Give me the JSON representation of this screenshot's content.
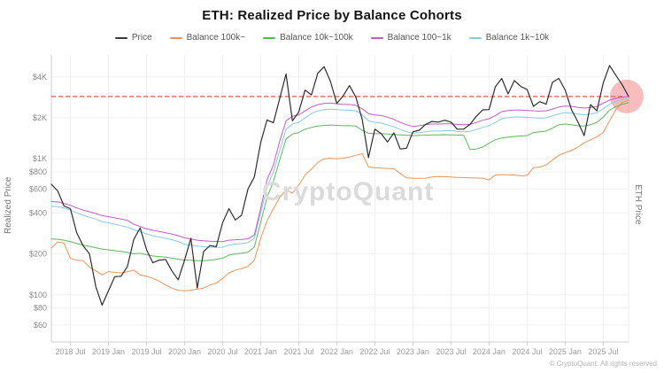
{
  "title": "ETH: Realized Price by Balance Cohorts",
  "legend": [
    {
      "label": "Price",
      "color": "#3a3a3a"
    },
    {
      "label": "Balance 100k~",
      "color": "#ec9456"
    },
    {
      "label": "Balance 10k~100k",
      "color": "#5cb85c"
    },
    {
      "label": "Balance 100~1k",
      "color": "#c45ac8"
    },
    {
      "label": "Balance 1k~10k",
      "color": "#85c9e8"
    }
  ],
  "y_axis": {
    "title": "Realized Price",
    "ticks": [
      {
        "value": 4000,
        "label": "$4K"
      },
      {
        "value": 2000,
        "label": "$2K"
      },
      {
        "value": 1000,
        "label": "$1K"
      },
      {
        "value": 800,
        "label": "$800"
      },
      {
        "value": 600,
        "label": "$600"
      },
      {
        "value": 400,
        "label": "$400"
      },
      {
        "value": 200,
        "label": "$200"
      },
      {
        "value": 100,
        "label": "$100"
      },
      {
        "value": 80,
        "label": "$80"
      },
      {
        "value": 60,
        "label": "$60"
      }
    ]
  },
  "right_axis_title": "ETH Price",
  "watermark": {
    "text": "CryptoQuant"
  },
  "footer": "© CryptoQuant. All rights reserved",
  "chart_data": {
    "type": "line",
    "yscale": "log",
    "ylim": [
      45,
      5800
    ],
    "grid": true,
    "legend_position": "top",
    "x": [
      "2018-04",
      "2018-05",
      "2018-06",
      "2018-07",
      "2018-08",
      "2018-09",
      "2018-10",
      "2018-11",
      "2018-12",
      "2019-01",
      "2019-02",
      "2019-03",
      "2019-04",
      "2019-05",
      "2019-06",
      "2019-07",
      "2019-08",
      "2019-09",
      "2019-10",
      "2019-11",
      "2019-12",
      "2020-01",
      "2020-02",
      "2020-03",
      "2020-04",
      "2020-05",
      "2020-06",
      "2020-07",
      "2020-08",
      "2020-09",
      "2020-10",
      "2020-11",
      "2020-12",
      "2021-01",
      "2021-02",
      "2021-03",
      "2021-04",
      "2021-05",
      "2021-06",
      "2021-07",
      "2021-08",
      "2021-09",
      "2021-10",
      "2021-11",
      "2021-12",
      "2022-01",
      "2022-02",
      "2022-03",
      "2022-04",
      "2022-05",
      "2022-06",
      "2022-07",
      "2022-08",
      "2022-09",
      "2022-10",
      "2022-11",
      "2022-12",
      "2023-01",
      "2023-02",
      "2023-03",
      "2023-04",
      "2023-05",
      "2023-06",
      "2023-07",
      "2023-08",
      "2023-09",
      "2023-10",
      "2023-11",
      "2023-12",
      "2024-01",
      "2024-02",
      "2024-03",
      "2024-04",
      "2024-05",
      "2024-06",
      "2024-07",
      "2024-08",
      "2024-09",
      "2024-10",
      "2024-11",
      "2024-12",
      "2025-01",
      "2025-02",
      "2025-03",
      "2025-04",
      "2025-05",
      "2025-06",
      "2025-07",
      "2025-08",
      "2025-09",
      "2025-10",
      "2025-11"
    ],
    "series": [
      {
        "name": "Balance 100k~",
        "color": "#ec9456",
        "width": 1,
        "values": [
          220,
          245,
          240,
          185,
          180,
          178,
          160,
          150,
          140,
          148,
          146,
          145,
          148,
          152,
          140,
          137,
          132,
          126,
          118,
          112,
          108,
          107,
          108,
          110,
          112,
          118,
          122,
          132,
          145,
          152,
          156,
          162,
          180,
          260,
          350,
          430,
          520,
          590,
          560,
          640,
          760,
          840,
          940,
          1000,
          1010,
          1000,
          1010,
          1030,
          1060,
          1090,
          870,
          860,
          855,
          850,
          845,
          780,
          725,
          720,
          718,
          720,
          735,
          740,
          738,
          735,
          730,
          728,
          725,
          722,
          720,
          700,
          760,
          765,
          762,
          760,
          750,
          755,
          860,
          870,
          900,
          980,
          1060,
          1110,
          1150,
          1220,
          1310,
          1380,
          1450,
          1560,
          1900,
          2300,
          2600,
          2700
        ]
      },
      {
        "name": "Balance 10k~100k",
        "color": "#5cb85c",
        "width": 1,
        "values": [
          258,
          256,
          252,
          246,
          238,
          232,
          227,
          222,
          217,
          214,
          211,
          208,
          205,
          200,
          202,
          197,
          193,
          191,
          189,
          186,
          183,
          180,
          180,
          178,
          178,
          180,
          182,
          186,
          196,
          200,
          202,
          206,
          225,
          340,
          520,
          680,
          980,
          1400,
          1520,
          1560,
          1650,
          1700,
          1740,
          1760,
          1770,
          1760,
          1750,
          1750,
          1740,
          1620,
          1540,
          1530,
          1530,
          1520,
          1510,
          1500,
          1490,
          1480,
          1485,
          1490,
          1500,
          1500,
          1505,
          1500,
          1495,
          1490,
          1170,
          1180,
          1220,
          1300,
          1380,
          1420,
          1440,
          1460,
          1470,
          1480,
          1560,
          1580,
          1600,
          1680,
          1780,
          1800,
          1780,
          1750,
          1740,
          1780,
          1850,
          2020,
          2280,
          2420,
          2520,
          2580
        ]
      },
      {
        "name": "Balance 1k~10k",
        "color": "#85c9e8",
        "width": 1,
        "values": [
          448,
          445,
          435,
          420,
          400,
          385,
          372,
          360,
          345,
          338,
          330,
          322,
          315,
          300,
          292,
          280,
          272,
          266,
          260,
          254,
          247,
          235,
          232,
          228,
          226,
          224,
          223,
          224,
          232,
          236,
          238,
          242,
          260,
          400,
          620,
          800,
          1150,
          1650,
          1800,
          1850,
          2000,
          2150,
          2250,
          2300,
          2320,
          2300,
          2280,
          2280,
          2250,
          2100,
          1900,
          1850,
          1830,
          1780,
          1720,
          1640,
          1580,
          1545,
          1560,
          1580,
          1600,
          1600,
          1610,
          1610,
          1590,
          1580,
          1590,
          1640,
          1700,
          1750,
          1850,
          1970,
          2010,
          2030,
          2030,
          2020,
          2000,
          1990,
          2000,
          2070,
          2140,
          2180,
          2170,
          2130,
          2100,
          2130,
          2180,
          2330,
          2520,
          2640,
          2720,
          2790
        ]
      },
      {
        "name": "Balance 100~1k",
        "color": "#c45ac8",
        "width": 1,
        "values": [
          485,
          482,
          470,
          455,
          435,
          420,
          408,
          396,
          382,
          375,
          368,
          360,
          352,
          330,
          318,
          305,
          298,
          292,
          286,
          280,
          272,
          262,
          258,
          252,
          250,
          248,
          247,
          246,
          252,
          254,
          255,
          258,
          275,
          430,
          700,
          900,
          1350,
          1900,
          2050,
          2100,
          2250,
          2400,
          2500,
          2550,
          2570,
          2540,
          2510,
          2510,
          2470,
          2330,
          2150,
          2100,
          2080,
          2020,
          1950,
          1850,
          1780,
          1730,
          1750,
          1780,
          1800,
          1800,
          1810,
          1810,
          1790,
          1780,
          1790,
          1850,
          1920,
          1970,
          2080,
          2220,
          2260,
          2280,
          2280,
          2270,
          2250,
          2240,
          2250,
          2320,
          2400,
          2440,
          2430,
          2390,
          2360,
          2380,
          2420,
          2560,
          2700,
          2780,
          2830,
          2870
        ]
      },
      {
        "name": "Price",
        "color": "#2e2e2e",
        "width": 1.2,
        "values": [
          650,
          580,
          450,
          430,
          285,
          230,
          200,
          115,
          84,
          107,
          136,
          137,
          162,
          255,
          310,
          215,
          172,
          180,
          182,
          150,
          129,
          180,
          260,
          112,
          208,
          230,
          226,
          340,
          430,
          355,
          385,
          600,
          735,
          1310,
          1930,
          1840,
          2770,
          4200,
          1900,
          2200,
          3200,
          2950,
          4250,
          4750,
          3700,
          2550,
          2900,
          3450,
          2850,
          1950,
          1020,
          1650,
          1530,
          1330,
          1550,
          1180,
          1195,
          1580,
          1620,
          1790,
          1880,
          1860,
          1920,
          1860,
          1650,
          1650,
          1790,
          2050,
          2290,
          2300,
          3380,
          3900,
          3000,
          3760,
          3400,
          3230,
          2430,
          2630,
          2520,
          3650,
          3900,
          3200,
          2300,
          1870,
          1480,
          2500,
          2250,
          3600,
          4850,
          4100,
          3500,
          2870
        ]
      }
    ],
    "annotations": {
      "reference_line": {
        "value": 2870,
        "color": "#e04433",
        "style": "dashed"
      },
      "highlight_circle": {
        "x_index": 90.7,
        "value": 2870,
        "radius": 19,
        "color": "rgba(242,108,108,0.45)"
      }
    }
  }
}
